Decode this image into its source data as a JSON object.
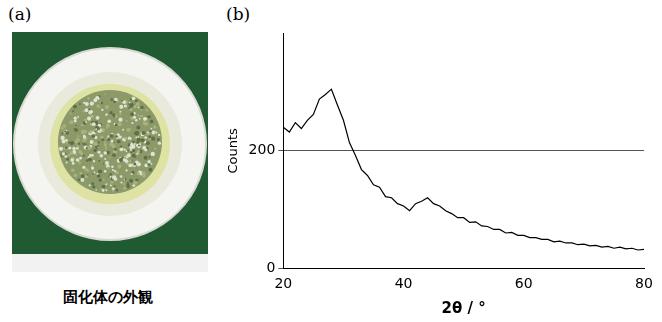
{
  "photo": {
    "panel_label": "(a)",
    "caption": "固化体の外観"
  },
  "chart_data": {
    "panel_label": "(b)",
    "type": "line",
    "color": "#000000",
    "x_label": "2θ / °",
    "y_label": "Counts",
    "x": [
      20,
      21,
      22,
      23,
      24,
      25,
      26,
      27,
      28,
      29,
      30,
      31,
      32,
      33,
      34,
      35,
      36,
      37,
      38,
      39,
      40,
      41,
      42,
      43,
      44,
      45,
      46,
      47,
      48,
      49,
      50,
      51,
      52,
      53,
      54,
      55,
      56,
      57,
      58,
      59,
      60,
      61,
      62,
      63,
      64,
      65,
      66,
      67,
      68,
      69,
      70,
      71,
      72,
      73,
      74,
      75,
      76,
      77,
      78,
      79,
      80
    ],
    "values": [
      240,
      232,
      248,
      238,
      252,
      262,
      288,
      296,
      305,
      278,
      252,
      214,
      192,
      168,
      158,
      142,
      138,
      122,
      120,
      110,
      106,
      98,
      110,
      114,
      120,
      110,
      106,
      98,
      93,
      86,
      86,
      78,
      79,
      72,
      71,
      66,
      66,
      60,
      61,
      56,
      56,
      52,
      52,
      49,
      49,
      45,
      46,
      43,
      43,
      40,
      41,
      38,
      39,
      36,
      37,
      34,
      36,
      33,
      34,
      31,
      32
    ],
    "xlim": [
      20,
      80
    ],
    "xticks": [
      20,
      40,
      60,
      80
    ],
    "ylim": [
      0,
      400
    ],
    "yticks": [
      0,
      200
    ],
    "grid": true
  }
}
